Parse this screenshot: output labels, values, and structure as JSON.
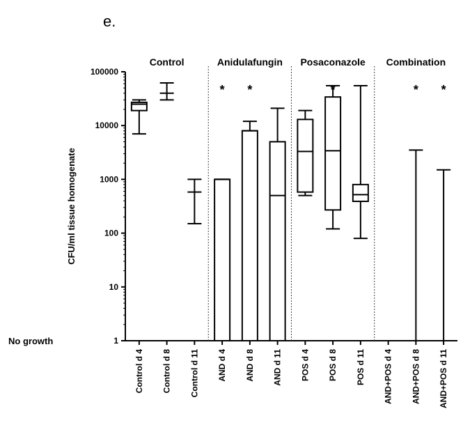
{
  "chart_data": {
    "type": "box",
    "panel_label": "e.",
    "title": "",
    "ylabel": "CFU/ml tissue homogenate",
    "xlabel": "",
    "yscale": "log",
    "ylim": [
      1,
      100000
    ],
    "yticks": [
      {
        "value": 1,
        "label": "1"
      },
      {
        "value": 10,
        "label": "10"
      },
      {
        "value": 100,
        "label": "100"
      },
      {
        "value": 1000,
        "label": "1000"
      },
      {
        "value": 10000,
        "label": "10000"
      },
      {
        "value": 100000,
        "label": "100000"
      }
    ],
    "no_growth_label": "No growth",
    "grid": false,
    "groups": [
      {
        "name": "Control",
        "first": 0,
        "last": 2
      },
      {
        "name": "Anidulafungin",
        "first": 3,
        "last": 5
      },
      {
        "name": "Posaconazole",
        "first": 6,
        "last": 8
      },
      {
        "name": "Combination",
        "first": 9,
        "last": 11
      }
    ],
    "categories": [
      "Control d 4",
      "Control d 8",
      "Control d 11",
      "AND d 4",
      "AND d 8",
      "AND d 11",
      "POS d 4",
      "POS d 8",
      "POS d 11",
      "AND+POS d 4",
      "AND+POS d 8",
      "AND+POS d 11"
    ],
    "boxes": [
      {
        "min": 7000,
        "q1": 19000,
        "median": 25000,
        "q3": 27000,
        "max": 30000
      },
      {
        "min": 30000,
        "q1": 40000,
        "median": 40000,
        "q3": 40000,
        "max": 62000
      },
      {
        "min": 150,
        "q1": 580,
        "median": 580,
        "q3": 580,
        "max": 1000
      },
      {
        "min": 1,
        "q1": 1,
        "median": 1000,
        "q3": 1000,
        "max": 1000
      },
      {
        "min": 1,
        "q1": 1,
        "median": 8000,
        "q3": 8000,
        "max": 12000
      },
      {
        "min": 1,
        "q1": 1,
        "median": 500,
        "q3": 5000,
        "max": 21000
      },
      {
        "min": 500,
        "q1": 580,
        "median": 3300,
        "q3": 13000,
        "max": 19000
      },
      {
        "min": 120,
        "q1": 270,
        "median": 3400,
        "q3": 34000,
        "max": 55000
      },
      {
        "min": 80,
        "q1": 390,
        "median": 520,
        "q3": 800,
        "max": 55000
      },
      null,
      {
        "min": 1,
        "q1": 1,
        "median": 1,
        "q3": 1,
        "max": 3500
      },
      {
        "min": 1,
        "q1": 1,
        "median": 1,
        "q3": 1,
        "max": 1500
      }
    ],
    "significance": [
      {
        "category": 3,
        "symbol": "*"
      },
      {
        "category": 4,
        "symbol": "*"
      },
      {
        "category": 7,
        "symbol": "*"
      },
      {
        "category": 10,
        "symbol": "*"
      },
      {
        "category": 11,
        "symbol": "*"
      }
    ]
  }
}
